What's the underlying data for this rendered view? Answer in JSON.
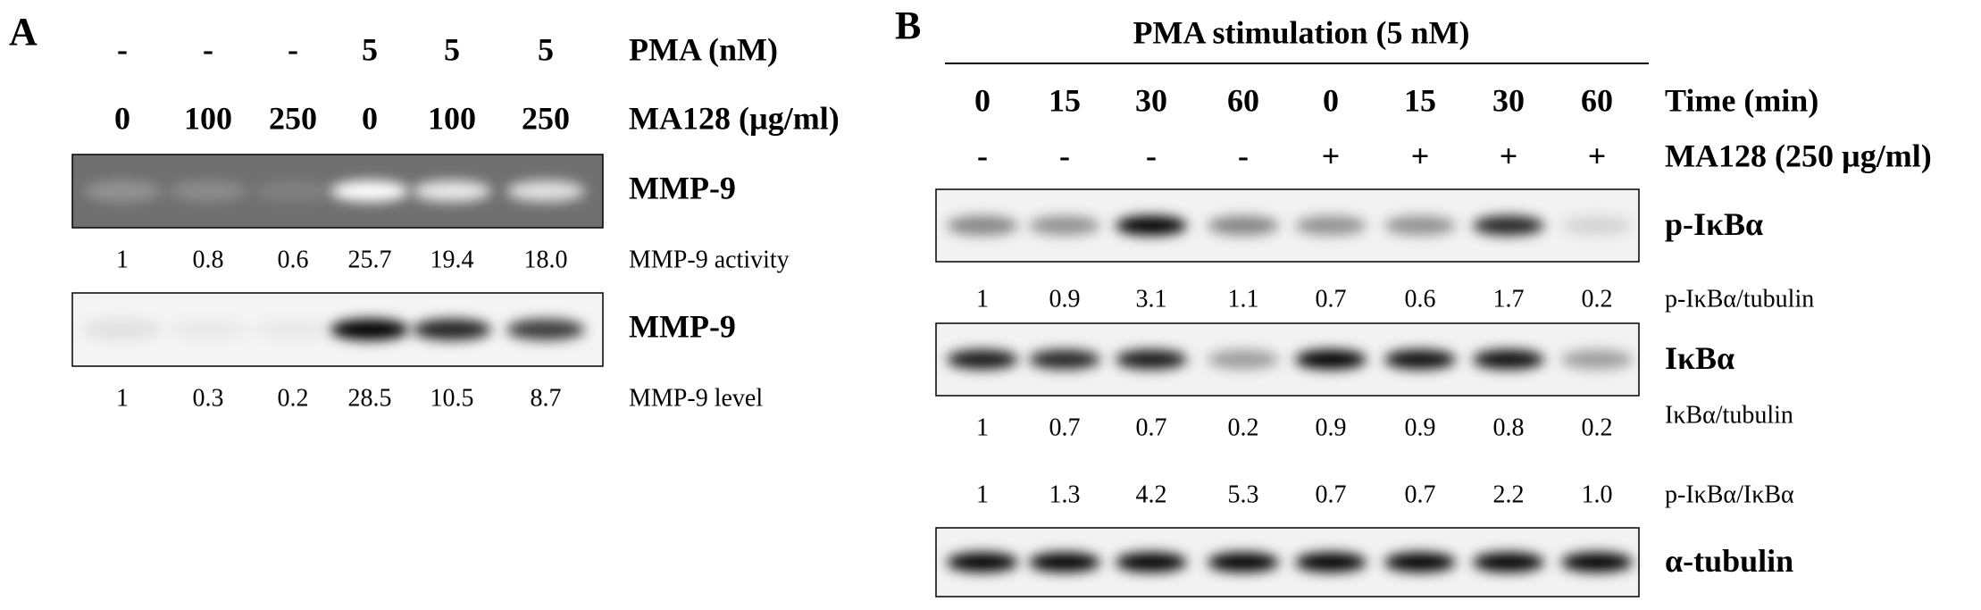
{
  "panel_a": {
    "label": "A",
    "pma": {
      "label": "PMA (nM)",
      "values": [
        "-",
        "-",
        "-",
        "5",
        "5",
        "5"
      ]
    },
    "ma128": {
      "label": "MA128 (µg/ml)",
      "values": [
        "0",
        "100",
        "250",
        "0",
        "100",
        "250"
      ]
    },
    "blots": [
      {
        "label": "MMP-9",
        "quant_label": "MMP-9 activity",
        "quant": [
          "1",
          "0.8",
          "0.6",
          "25.7",
          "19.4",
          "18.0"
        ]
      },
      {
        "label": "MMP-9",
        "quant_label": "MMP-9 level",
        "quant": [
          "1",
          "0.3",
          "0.2",
          "28.5",
          "10.5",
          "8.7"
        ]
      }
    ]
  },
  "panel_b": {
    "label": "B",
    "title": "PMA stimulation (5 nM)",
    "time": {
      "label": "Time (min)",
      "values": [
        "0",
        "15",
        "30",
        "60",
        "0",
        "15",
        "30",
        "60"
      ]
    },
    "ma128": {
      "label": "MA128 (250 µg/ml)",
      "values": [
        "-",
        "-",
        "-",
        "-",
        "+",
        "+",
        "+",
        "+"
      ]
    },
    "blots": [
      {
        "label": "p-IκBα"
      },
      {
        "label": "IκBα"
      },
      {
        "label": "α-tubulin"
      }
    ],
    "quantifications": [
      {
        "label": "p-IκBα/tubulin",
        "values": [
          "1",
          "0.9",
          "3.1",
          "1.1",
          "0.7",
          "0.6",
          "1.7",
          "0.2"
        ]
      },
      {
        "label": "IκBα/tubulin",
        "values": [
          "1",
          "0.7",
          "0.7",
          "0.2",
          "0.9",
          "0.9",
          "0.8",
          "0.2"
        ]
      },
      {
        "label": "p-IκBα/IκBα",
        "values": [
          "1",
          "1.3",
          "4.2",
          "5.3",
          "0.7",
          "0.7",
          "2.2",
          "1.0"
        ]
      }
    ]
  }
}
